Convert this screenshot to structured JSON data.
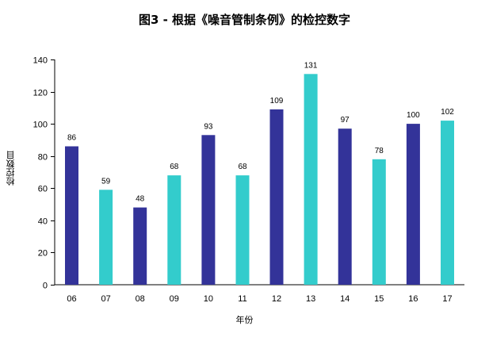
{
  "title": "图3 - 根据《噪音管制条例》的检控数字",
  "chart_data": {
    "type": "bar",
    "title": "图3 - 根据《噪音管制条例》的检控数字",
    "xlabel": "年份",
    "ylabel": "检控数目",
    "categories": [
      "06",
      "07",
      "08",
      "09",
      "10",
      "11",
      "12",
      "13",
      "14",
      "15",
      "16",
      "17"
    ],
    "values": [
      86,
      59,
      48,
      68,
      93,
      68,
      109,
      131,
      97,
      78,
      100,
      102
    ],
    "bar_colors": [
      "#333399",
      "#33CCCC",
      "#333399",
      "#33CCCC",
      "#333399",
      "#33CCCC",
      "#333399",
      "#33CCCC",
      "#333399",
      "#33CCCC",
      "#333399",
      "#33CCCC"
    ],
    "yticks": [
      0,
      20,
      40,
      60,
      80,
      100,
      120,
      140
    ],
    "ylim": [
      0,
      140
    ],
    "grid": false,
    "legend": null,
    "data_labels": true
  }
}
